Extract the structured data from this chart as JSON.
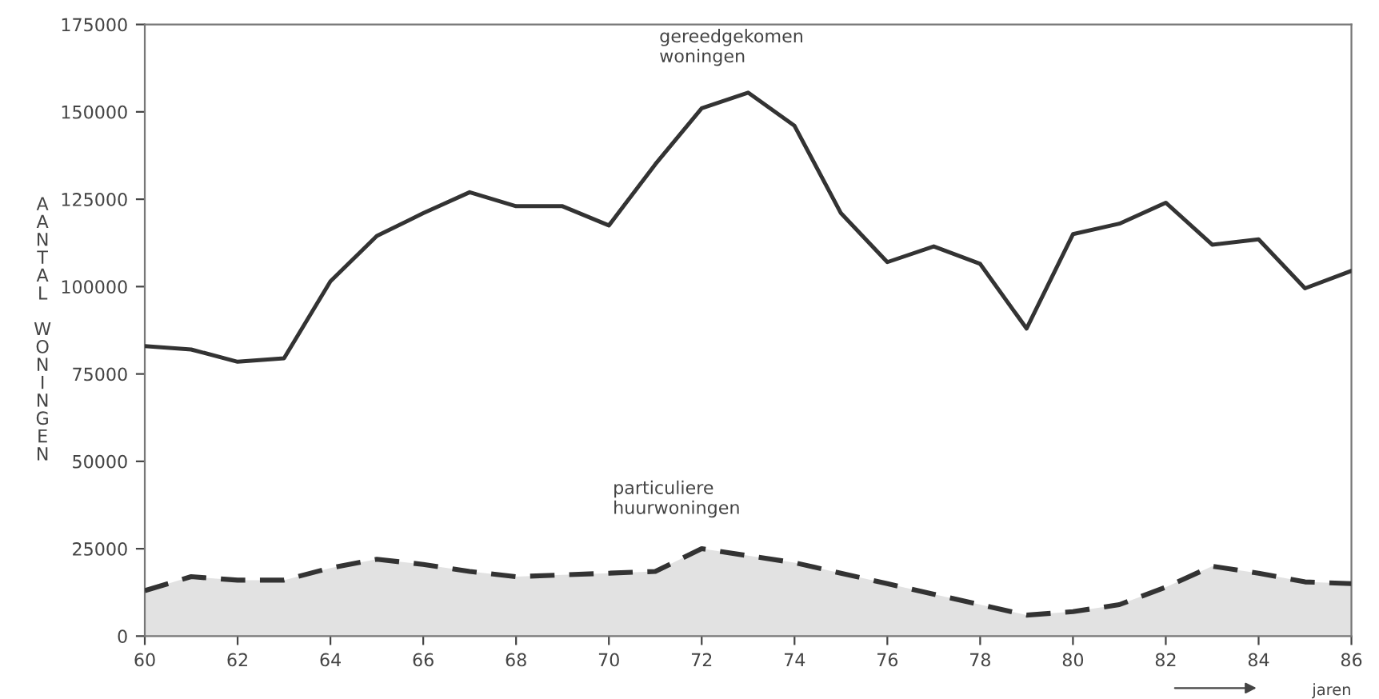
{
  "chart_data": {
    "type": "line",
    "xlabel": "jaren",
    "ylabel": "AANTAL WONINGEN",
    "x": [
      60,
      61,
      62,
      63,
      64,
      65,
      66,
      67,
      68,
      69,
      70,
      71,
      72,
      73,
      74,
      75,
      76,
      77,
      78,
      79,
      80,
      81,
      82,
      83,
      84,
      85,
      86
    ],
    "series": [
      {
        "name": "gereedgekomen\nwoningen",
        "color": "#333333",
        "line_style": "solid",
        "values": [
          83000,
          82000,
          78500,
          79500,
          101500,
          114500,
          121000,
          127000,
          123000,
          123000,
          117500,
          135000,
          151000,
          155500,
          146000,
          121000,
          107000,
          111500,
          106500,
          88000,
          115000,
          118000,
          124000,
          112000,
          113500,
          99500,
          104500
        ]
      },
      {
        "name": "particuliere\nhuurwoningen",
        "type": "area",
        "color": "#333333",
        "line_style": "dashed",
        "values": [
          13000,
          17000,
          16000,
          16000,
          19500,
          22000,
          20500,
          18500,
          17000,
          17500,
          18000,
          18500,
          25000,
          23000,
          21000,
          18000,
          15000,
          12000,
          9000,
          6000,
          7000,
          9000,
          14000,
          20000,
          18000,
          15500,
          15000
        ]
      }
    ],
    "xlim": [
      60,
      86
    ],
    "xticks": [
      60,
      62,
      64,
      66,
      68,
      70,
      72,
      74,
      76,
      78,
      80,
      82,
      84,
      86
    ],
    "ylim": [
      0,
      175000
    ],
    "yticks": [
      0,
      25000,
      50000,
      75000,
      100000,
      125000,
      150000,
      175000
    ],
    "grid": false,
    "legend": false,
    "marker": "none"
  }
}
